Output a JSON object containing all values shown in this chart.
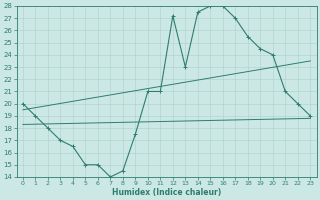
{
  "title": "",
  "xlabel": "Humidex (Indice chaleur)",
  "bg_color": "#cce8e4",
  "line_color": "#2e7d6e",
  "grid_color": "#aacfca",
  "xlim": [
    -0.5,
    23.5
  ],
  "ylim": [
    14,
    28
  ],
  "xticks": [
    0,
    1,
    2,
    3,
    4,
    5,
    6,
    7,
    8,
    9,
    10,
    11,
    12,
    13,
    14,
    15,
    16,
    17,
    18,
    19,
    20,
    21,
    22,
    23
  ],
  "yticks": [
    14,
    15,
    16,
    17,
    18,
    19,
    20,
    21,
    22,
    23,
    24,
    25,
    26,
    27,
    28
  ],
  "curve1_x": [
    0,
    1,
    2,
    3,
    4,
    5,
    6,
    7,
    8,
    9,
    10,
    11,
    12,
    13,
    14,
    15,
    16,
    17,
    18,
    19,
    20,
    21,
    22,
    23
  ],
  "curve1_y": [
    20.0,
    19.0,
    18.0,
    17.0,
    16.5,
    15.0,
    15.0,
    14.0,
    14.5,
    17.5,
    21.0,
    21.0,
    27.2,
    23.0,
    27.5,
    28.0,
    28.0,
    27.0,
    25.5,
    24.5,
    24.0,
    21.0,
    20.0,
    19.0
  ],
  "curve2_x": [
    0,
    23
  ],
  "curve2_y": [
    19.5,
    23.5
  ],
  "curve3_x": [
    0,
    23
  ],
  "curve3_y": [
    18.3,
    18.8
  ],
  "figsize": [
    3.2,
    2.0
  ],
  "dpi": 100
}
